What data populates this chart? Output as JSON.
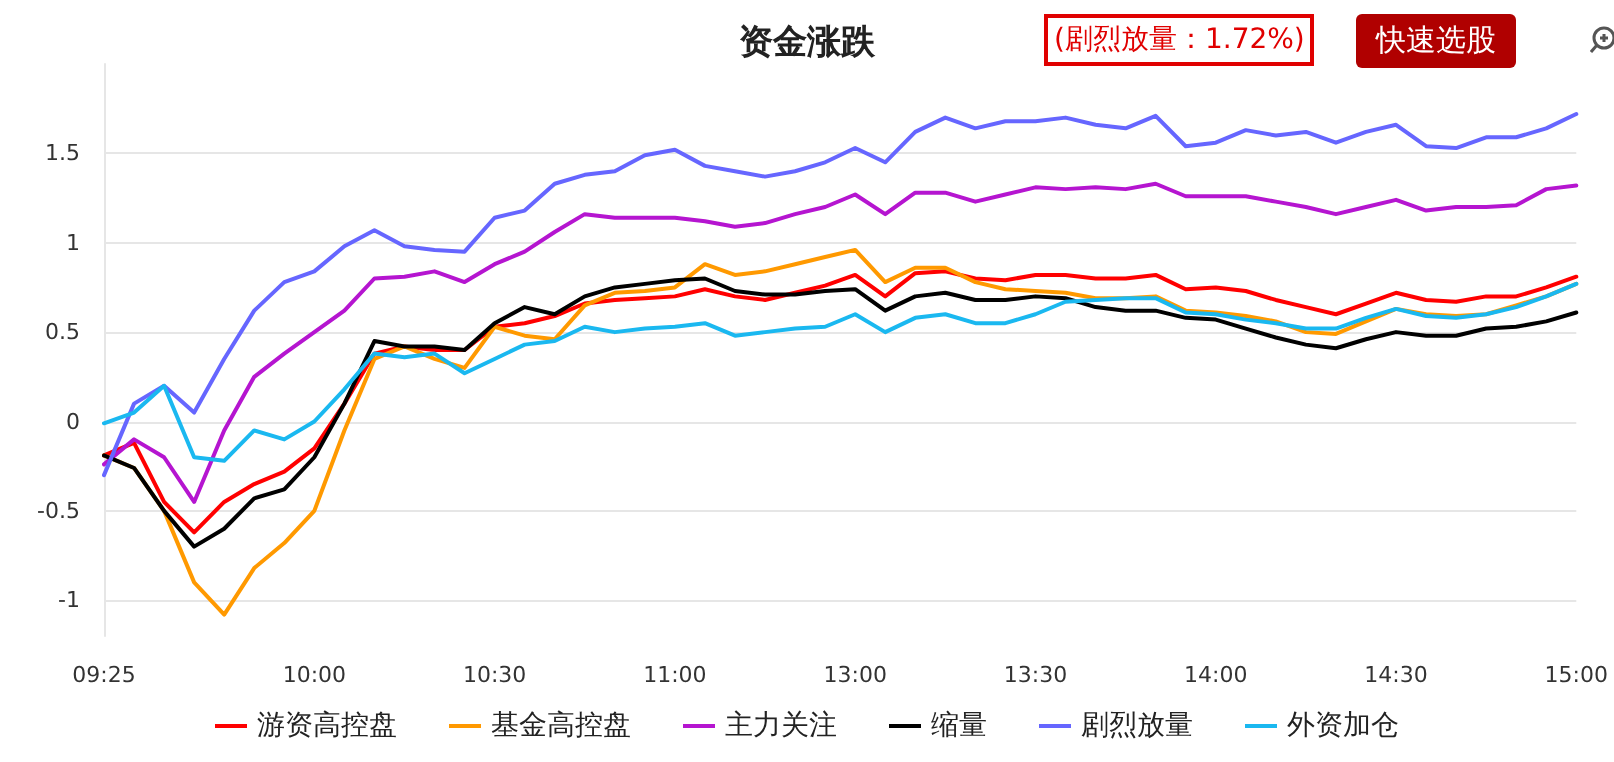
{
  "chart_data": {
    "type": "line",
    "title": "资金涨跌",
    "annotations": [
      "(剧烈放量：1.72%)",
      "快速选股"
    ],
    "categories": [
      "09:25",
      null,
      null,
      null,
      null,
      null,
      null,
      "10:00",
      null,
      null,
      null,
      null,
      null,
      "10:30",
      null,
      null,
      null,
      null,
      null,
      "11:00",
      null,
      null,
      null,
      null,
      null,
      "13:00",
      null,
      null,
      null,
      null,
      null,
      "13:30",
      null,
      null,
      null,
      null,
      null,
      "14:00",
      null,
      null,
      null,
      null,
      null,
      "14:30",
      null,
      null,
      null,
      null,
      null,
      "15:00"
    ],
    "ylim": [
      -1.2,
      2
    ],
    "yticks": [
      -1,
      -0.5,
      0,
      0.5,
      1,
      1.5
    ],
    "grid": "y",
    "legend": "bottom",
    "marker": "none",
    "line_style": "solid",
    "series": [
      {
        "name": "游资高控盘",
        "color": "#ff0000",
        "values": [
          -0.19,
          -0.12,
          -0.45,
          -0.62,
          -0.45,
          -0.35,
          -0.28,
          -0.15,
          0.1,
          0.38,
          0.42,
          0.4,
          0.4,
          0.53,
          0.55,
          0.59,
          0.66,
          0.68,
          0.69,
          0.7,
          0.74,
          0.7,
          0.68,
          0.72,
          0.76,
          0.82,
          0.7,
          0.83,
          0.84,
          0.8,
          0.79,
          0.82,
          0.82,
          0.8,
          0.8,
          0.82,
          0.74,
          0.75,
          0.73,
          0.68,
          0.64,
          0.6,
          0.66,
          0.72,
          0.68,
          0.67,
          0.7,
          0.7,
          0.75,
          0.81
        ]
      },
      {
        "name": "基金高控盘",
        "color": "#ff9900",
        "values": [
          -0.19,
          -0.26,
          -0.5,
          -0.9,
          -1.08,
          -0.82,
          -0.68,
          -0.5,
          -0.05,
          0.35,
          0.42,
          0.35,
          0.3,
          0.53,
          0.48,
          0.46,
          0.65,
          0.72,
          0.73,
          0.75,
          0.88,
          0.82,
          0.84,
          0.88,
          0.92,
          0.96,
          0.78,
          0.86,
          0.86,
          0.78,
          0.74,
          0.73,
          0.72,
          0.69,
          0.69,
          0.7,
          0.62,
          0.61,
          0.59,
          0.56,
          0.5,
          0.49,
          0.56,
          0.63,
          0.6,
          0.59,
          0.6,
          0.65,
          0.7,
          0.77
        ]
      },
      {
        "name": "主力关注",
        "color": "#b515d0",
        "values": [
          -0.24,
          -0.1,
          -0.2,
          -0.45,
          -0.05,
          0.25,
          0.38,
          0.5,
          0.62,
          0.8,
          0.81,
          0.84,
          0.78,
          0.88,
          0.95,
          1.06,
          1.16,
          1.14,
          1.14,
          1.14,
          1.12,
          1.09,
          1.11,
          1.16,
          1.2,
          1.27,
          1.16,
          1.28,
          1.28,
          1.23,
          1.27,
          1.31,
          1.3,
          1.31,
          1.3,
          1.33,
          1.26,
          1.26,
          1.26,
          1.23,
          1.2,
          1.16,
          1.2,
          1.24,
          1.18,
          1.2,
          1.2,
          1.21,
          1.3,
          1.32
        ]
      },
      {
        "name": "缩量",
        "color": "#000000",
        "values": [
          -0.19,
          -0.26,
          -0.5,
          -0.7,
          -0.6,
          -0.43,
          -0.38,
          -0.2,
          0.1,
          0.45,
          0.42,
          0.42,
          0.4,
          0.55,
          0.64,
          0.6,
          0.7,
          0.75,
          0.77,
          0.79,
          0.8,
          0.73,
          0.71,
          0.71,
          0.73,
          0.74,
          0.62,
          0.7,
          0.72,
          0.68,
          0.68,
          0.7,
          0.69,
          0.64,
          0.62,
          0.62,
          0.58,
          0.57,
          0.52,
          0.47,
          0.43,
          0.41,
          0.46,
          0.5,
          0.48,
          0.48,
          0.52,
          0.53,
          0.56,
          0.61
        ]
      },
      {
        "name": "剧烈放量",
        "color": "#6666ff",
        "values": [
          -0.3,
          0.1,
          0.2,
          0.05,
          0.35,
          0.62,
          0.78,
          0.84,
          0.98,
          1.07,
          0.98,
          0.96,
          0.95,
          1.14,
          1.18,
          1.33,
          1.38,
          1.4,
          1.49,
          1.52,
          1.43,
          1.4,
          1.37,
          1.4,
          1.45,
          1.53,
          1.45,
          1.62,
          1.7,
          1.64,
          1.68,
          1.68,
          1.7,
          1.66,
          1.64,
          1.71,
          1.54,
          1.56,
          1.63,
          1.6,
          1.62,
          1.56,
          1.62,
          1.66,
          1.54,
          1.53,
          1.59,
          1.59,
          1.64,
          1.72
        ]
      },
      {
        "name": "外资加仓",
        "color": "#1ab8f0",
        "values": [
          -0.01,
          0.05,
          0.2,
          -0.2,
          -0.22,
          -0.05,
          -0.1,
          0.0,
          0.18,
          0.38,
          0.36,
          0.38,
          0.27,
          0.35,
          0.43,
          0.45,
          0.53,
          0.5,
          0.52,
          0.53,
          0.55,
          0.48,
          0.5,
          0.52,
          0.53,
          0.6,
          0.5,
          0.58,
          0.6,
          0.55,
          0.55,
          0.6,
          0.67,
          0.68,
          0.69,
          0.69,
          0.61,
          0.6,
          0.57,
          0.55,
          0.52,
          0.52,
          0.58,
          0.63,
          0.59,
          0.58,
          0.6,
          0.64,
          0.7,
          0.77
        ]
      }
    ]
  }
}
